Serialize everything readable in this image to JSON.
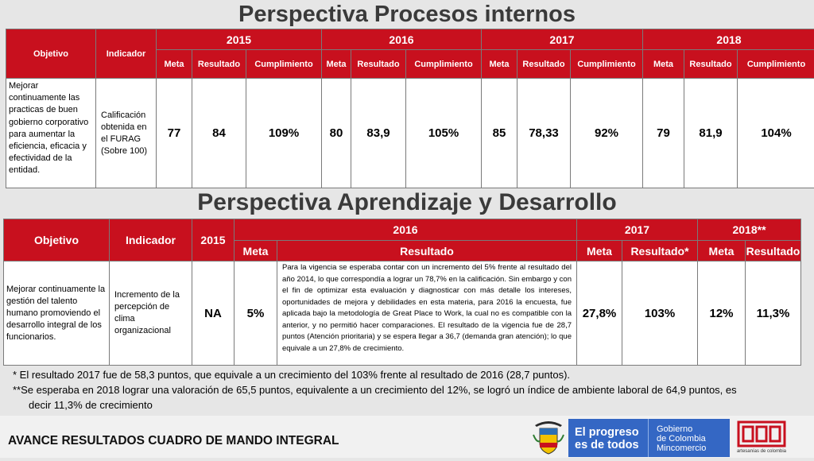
{
  "section1": {
    "title": "Perspectiva Procesos internos",
    "col_objetivo": "Objetivo",
    "col_indicador": "Indicador",
    "years": [
      "2015",
      "2016",
      "2017",
      "2018"
    ],
    "sub_meta": "Meta",
    "sub_resultado": "Resultado",
    "sub_cumplimiento": "Cumplimiento",
    "row": {
      "objetivo": "Mejorar continuamente las practicas de buen gobierno corporativo para aumentar la eficiencia, eficacia y efectividad de la entidad.",
      "indicador": "Calificación obtenida en el FURAG (Sobre 100)",
      "y2015": {
        "meta": "77",
        "resultado": "84",
        "cumplimiento": "109%"
      },
      "y2016": {
        "meta": "80",
        "resultado": "83,9",
        "cumplimiento": "105%"
      },
      "y2017": {
        "meta": "85",
        "resultado": "78,33",
        "cumplimiento": "92%"
      },
      "y2018": {
        "meta": "79",
        "resultado": "81,9",
        "cumplimiento": "104%"
      }
    }
  },
  "section2": {
    "title": "Perspectiva Aprendizaje y Desarrollo",
    "col_objetivo": "Objetivo",
    "col_indicador": "Indicador",
    "col_2015": "2015",
    "year_2016": "2016",
    "year_2017": "2017",
    "year_2018": "2018**",
    "sub_meta": "Meta",
    "sub_resultado": "Resultado",
    "sub_resultado_star": "Resultado*",
    "row": {
      "objetivo": "Mejorar continuamente la gestión del talento humano promoviendo el desarrollo integral de los funcionarios.",
      "indicador": "Incremento de la percepción de clima organizacional",
      "v2015": "NA",
      "meta2016": "5%",
      "resultado2016": "Para la vigencia se esperaba contar con un incremento del 5% frente al resultado del año 2014, lo que correspondía a lograr un 78,7% en la calificación. Sin embargo y con el fin de optimizar esta evaluación y diagnosticar con más detalle los intereses, oportunidades de mejora y debilidades en esta materia, para 2016 la encuesta, fue aplicada bajo la metodología de Great Place to Work, la cual no es compatible con la anterior, y no permitió hacer comparaciones. El resultado de la vigencia fue de 28,7 puntos (Atención prioritaria) y se espera llegar a 36,7 (demanda gran atención); lo que equivale a un 27,8% de crecimiento.",
      "meta2017": "27,8%",
      "resultado2017": "103%",
      "meta2018": "12%",
      "resultado2018": "11,3%"
    }
  },
  "notes": {
    "note1": "*   El resultado 2017 fue de 58,3 puntos, que equivale a un crecimiento del 103% frente al resultado de 2016 (28,7 puntos).",
    "note2a": "**Se esperaba en 2018 lograr una valoración de 65,5 puntos, equivalente a un crecimiento del 12%, se logró un índice de ambiente laboral de 64,9 puntos, es",
    "note2b": "decir 11,3%  de crecimiento"
  },
  "footer": {
    "title": "AVANCE RESULTADOS CUADRO DE MANDO INTEGRAL",
    "brand1_line1": "El progreso",
    "brand1_line2": "es de todos",
    "brand2_line1": "Gobierno",
    "brand2_line2": "de Colombia",
    "brand2_line3": "Mincomercio",
    "logo3_caption": "artesanías de colombia"
  },
  "colors": {
    "header_red": "#c8101e",
    "brand_blue": "#3467c4"
  }
}
